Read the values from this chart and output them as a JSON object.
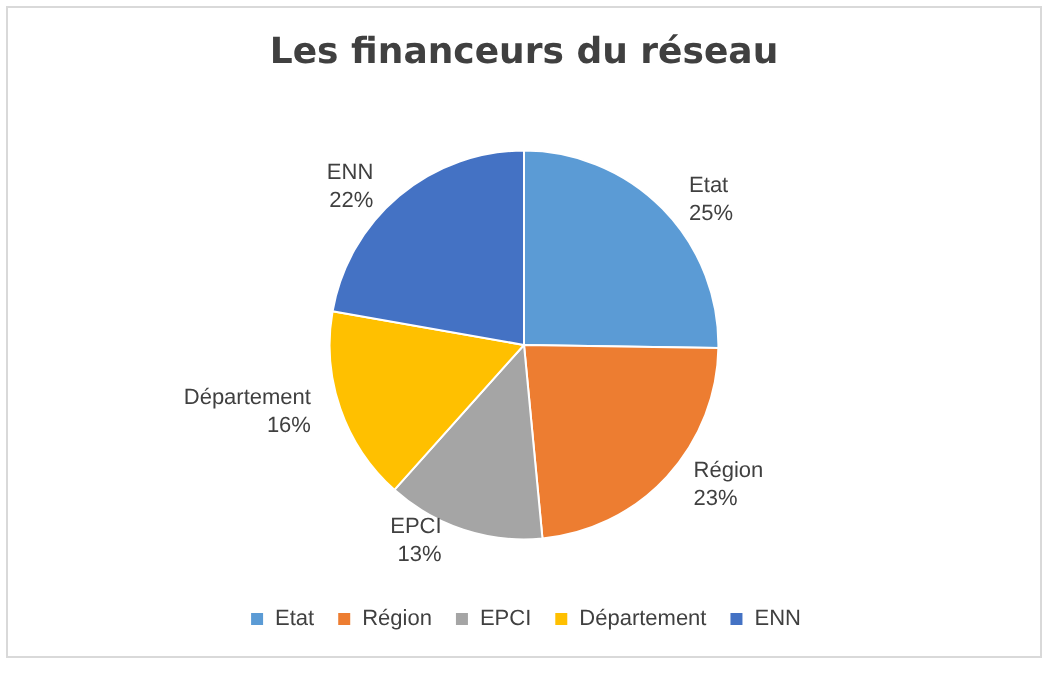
{
  "chart_data": {
    "type": "pie",
    "title": "Les financeurs du réseau",
    "categories": [
      "Etat",
      "Région",
      "EPCI",
      "Département",
      "ENN"
    ],
    "values": [
      25,
      23,
      13,
      16,
      22
    ],
    "value_labels": [
      "25%",
      "23%",
      "13%",
      "16%",
      "22%"
    ],
    "colors": [
      "#5b9bd5",
      "#ed7d31",
      "#a5a5a5",
      "#ffc000",
      "#4472c4"
    ],
    "legend": "bottom"
  }
}
